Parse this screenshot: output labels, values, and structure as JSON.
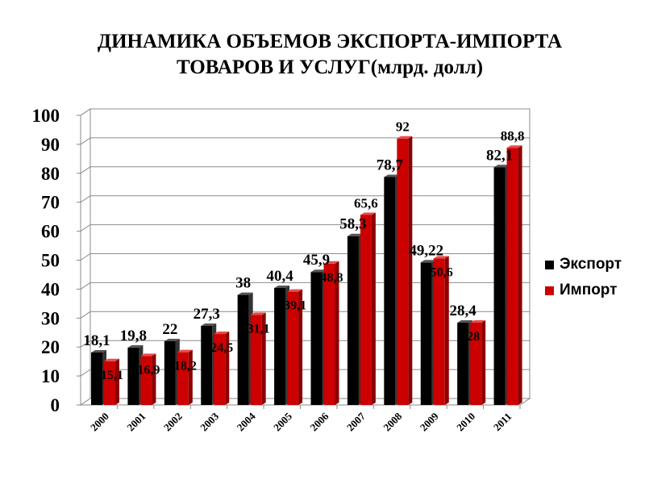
{
  "chart_data": {
    "type": "bar",
    "title_line1": "ДИНАМИКА ОБЪЕМОВ ЭКСПОРТА-ИМПОРТА",
    "title_line2": "ТОВАРОВ И УСЛУГ(млрд. долл)",
    "categories": [
      "2000",
      "2001",
      "2002",
      "2003",
      "2004",
      "2005",
      "2006",
      "2007",
      "2008",
      "2009",
      "2010",
      "2011"
    ],
    "series": [
      {
        "name": "Экспорт",
        "color": "#000000",
        "values": [
          18.1,
          19.8,
          22,
          27.3,
          38,
          40.4,
          45.9,
          58.3,
          78.7,
          49.22,
          28.4,
          82.1
        ],
        "labels": [
          "18,1",
          "19,8",
          "22",
          "27,3",
          "38",
          "40,4",
          "45,9",
          "58,3",
          "78,7",
          "49,22",
          "28,4",
          "82,1"
        ]
      },
      {
        "name": "Импорт",
        "color": "#cc0000",
        "values": [
          15.1,
          16.9,
          18.2,
          24.5,
          31.1,
          39.1,
          48.8,
          65.6,
          92,
          50.6,
          28.4,
          88.8
        ],
        "labels": [
          "15,1",
          "16,9",
          "18,2",
          "24,5",
          "31,1",
          "39,1",
          "48,8",
          "65,6",
          "92",
          "50,6",
          "28",
          "88,8"
        ]
      }
    ],
    "yticks": [
      "0",
      "10",
      "20",
      "30",
      "40",
      "50",
      "60",
      "70",
      "80",
      "90",
      "100"
    ],
    "ylim": [
      0,
      100
    ],
    "grid": true,
    "legend_position": "right"
  }
}
